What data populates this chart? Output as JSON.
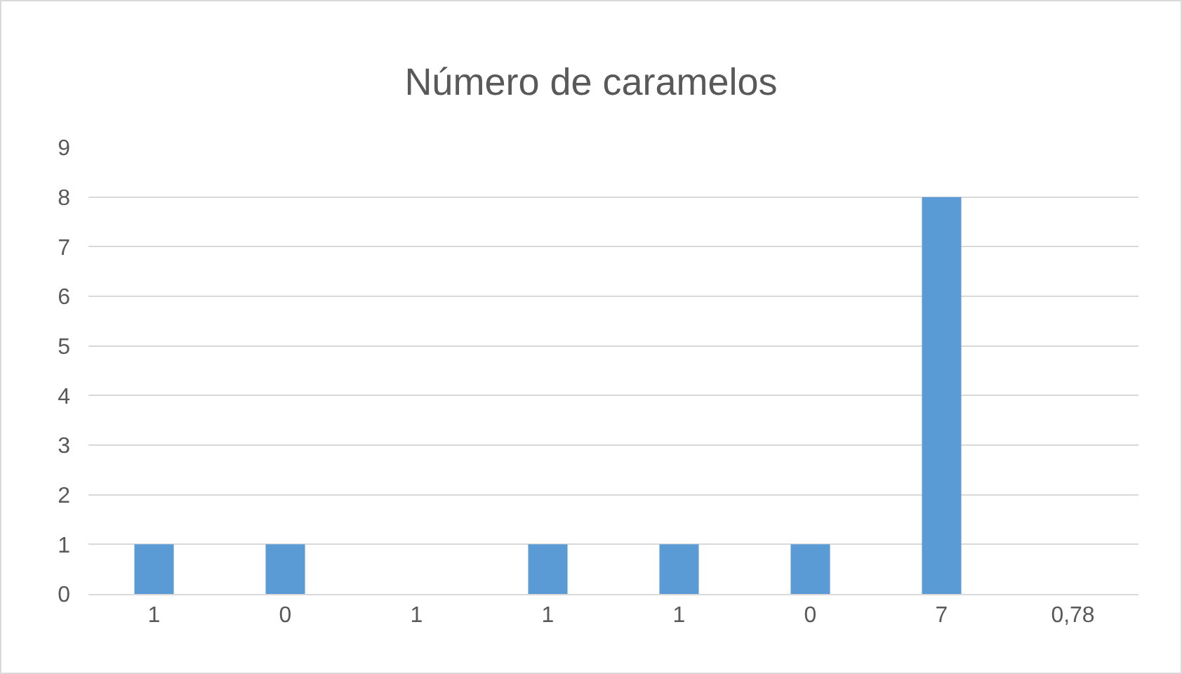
{
  "chart_data": {
    "type": "bar",
    "title": "Número de caramelos",
    "categories": [
      "1",
      "0",
      "1",
      "1",
      "1",
      "0",
      "7",
      "0,78"
    ],
    "values": [
      1,
      1,
      0,
      1,
      1,
      1,
      8,
      0
    ],
    "color": "#5b9bd5",
    "ylim": [
      0,
      9
    ],
    "yticks": [
      0,
      1,
      2,
      3,
      4,
      5,
      6,
      7,
      8,
      9
    ],
    "grid": "y"
  }
}
